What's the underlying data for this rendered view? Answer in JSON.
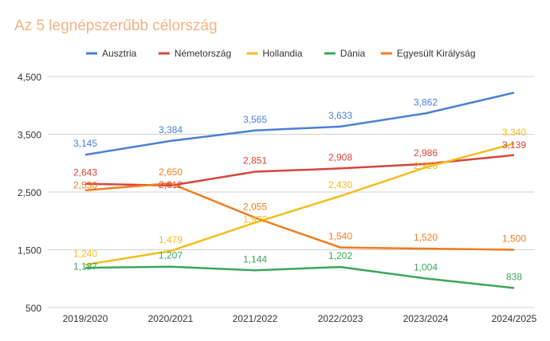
{
  "chart_data": {
    "type": "line",
    "title": "Az 5 legnépszerűbb célország",
    "categories": [
      "2019/2020",
      "2020/2021",
      "2021/2022",
      "2022/2023",
      "2023/2024",
      "2024/2025"
    ],
    "ylim": [
      500,
      4500
    ],
    "yticks": [
      "4,500",
      "3,500",
      "2,500",
      "1,500",
      "500"
    ],
    "ytick_values": [
      4500,
      3500,
      2500,
      1500,
      500
    ],
    "grid": true,
    "legend": "top",
    "series": [
      {
        "name": "Ausztria",
        "color": "#4a7fd6",
        "values": [
          3145,
          3384,
          3565,
          3633,
          3862,
          4220
        ],
        "labels": [
          "3,145",
          "3,384",
          "3,565",
          "3,633",
          "3,862",
          ""
        ]
      },
      {
        "name": "Németország",
        "color": "#d6443a",
        "values": [
          2643,
          2612,
          2851,
          2908,
          2986,
          3139
        ],
        "labels": [
          "2,643",
          "2,612",
          "2,851",
          "2,908",
          "2,986",
          "3,139"
        ]
      },
      {
        "name": "Hollandia",
        "color": "#f2bd1d",
        "values": [
          1240,
          1479,
          1970,
          2430,
          2926,
          3340
        ],
        "labels": [
          "1,240",
          "1,479",
          "1,970",
          "2,430",
          "2,926",
          "3,340"
        ]
      },
      {
        "name": "Dánia",
        "color": "#3aa657",
        "values": [
          1187,
          1207,
          1144,
          1202,
          1004,
          838
        ],
        "labels": [
          "1,187",
          "1,207",
          "1,144",
          "1,202",
          "1,004",
          "838"
        ]
      },
      {
        "name": "Egyesült Királyság",
        "color": "#f07c1c",
        "values": [
          2530,
          2650,
          2055,
          1540,
          1520,
          1500
        ],
        "labels": [
          "2,530",
          "2,650",
          "2,055",
          "1,540",
          "1,520",
          "1,500"
        ]
      }
    ]
  }
}
